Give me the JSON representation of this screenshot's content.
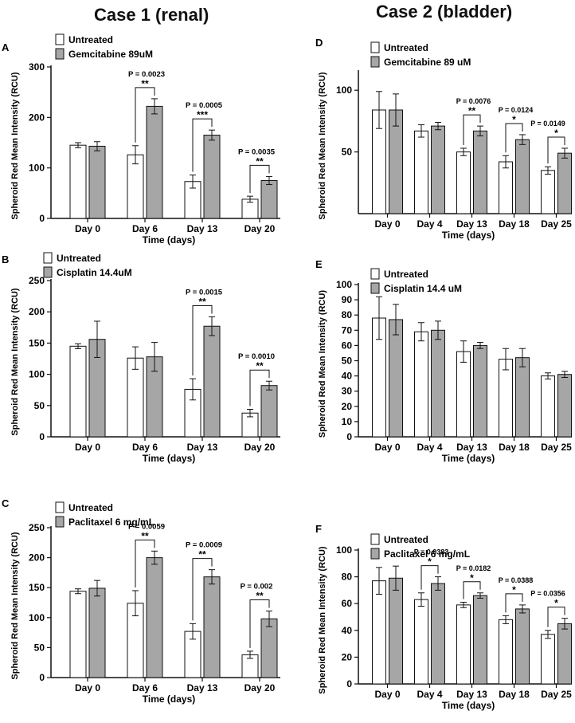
{
  "titles": {
    "case1": "Case 1 (renal)",
    "case2": "Case 2 (bladder)"
  },
  "colors": {
    "untreated": "#ffffff",
    "treated": "#a6a6a6",
    "stroke": "#111111"
  },
  "chart_data": [
    {
      "panel": "A",
      "type": "bar",
      "ylabel": "Spheroid  Red Mean Intensity (RCU)",
      "xlabel": "Time (days)",
      "ylim": [
        0,
        300
      ],
      "yticks": [
        0,
        100,
        200,
        300
      ],
      "categories": [
        "Day 0",
        "Day 6",
        "Day 13",
        "Day 20"
      ],
      "series": [
        {
          "name": "Untreated",
          "values": [
            145,
            126,
            73,
            38
          ],
          "errors": [
            5,
            18,
            13,
            6
          ]
        },
        {
          "name": "Gemcitabine 89uM",
          "values": [
            143,
            222,
            165,
            75
          ],
          "errors": [
            9,
            15,
            10,
            8
          ]
        }
      ],
      "annotations": [
        {
          "category": 1,
          "p": "P = 0.0023",
          "stars": "**"
        },
        {
          "category": 2,
          "p": "P = 0.0005",
          "stars": "***"
        },
        {
          "category": 3,
          "p": "P = 0.0035",
          "stars": "**"
        }
      ]
    },
    {
      "panel": "B",
      "type": "bar",
      "ylabel": "Spheroid  Red Mean Intensity (RCU)",
      "xlabel": "Time (days)",
      "ylim": [
        0,
        250
      ],
      "yticks": [
        0,
        50,
        100,
        150,
        200,
        250
      ],
      "categories": [
        "Day 0",
        "Day 6",
        "Day 13",
        "Day 20"
      ],
      "series": [
        {
          "name": "Untreated",
          "values": [
            145,
            126,
            76,
            38
          ],
          "errors": [
            4,
            18,
            17,
            6
          ]
        },
        {
          "name": "Cisplatin 14.4uM",
          "values": [
            156,
            128,
            177,
            82
          ],
          "errors": [
            29,
            23,
            15,
            7
          ]
        }
      ],
      "annotations": [
        {
          "category": 2,
          "p": "P = 0.0015",
          "stars": "**"
        },
        {
          "category": 3,
          "p": "P = 0.0010",
          "stars": "**"
        }
      ]
    },
    {
      "panel": "C",
      "type": "bar",
      "ylabel": "Spheroid  Red Mean Intensity (RCU)",
      "xlabel": "Time (days)",
      "ylim": [
        0,
        250
      ],
      "yticks": [
        0,
        50,
        100,
        150,
        200,
        250
      ],
      "categories": [
        "Day 0",
        "Day 6",
        "Day 13",
        "Day 20"
      ],
      "series": [
        {
          "name": "Untreated",
          "values": [
            144,
            124,
            77,
            38
          ],
          "errors": [
            4,
            21,
            13,
            6
          ]
        },
        {
          "name": "Paclitaxel 6 mg/mL",
          "values": [
            149,
            200,
            168,
            98
          ],
          "errors": [
            13,
            11,
            12,
            13
          ]
        }
      ],
      "annotations": [
        {
          "category": 1,
          "p": "P = 0.0059",
          "stars": "**"
        },
        {
          "category": 2,
          "p": "P = 0.0009",
          "stars": "**"
        },
        {
          "category": 3,
          "p": "P = 0.002",
          "stars": "**"
        }
      ]
    },
    {
      "panel": "D",
      "type": "bar",
      "ylabel": "Spheroid  Red Mean Intensity (RCU)",
      "xlabel": "Time (days)",
      "ylim": [
        0,
        115
      ],
      "yticks": [
        50,
        100
      ],
      "categories": [
        "Day 0",
        "Day 4",
        "Day 13",
        "Day 18",
        "Day 25"
      ],
      "series": [
        {
          "name": "Untreated",
          "values": [
            84,
            67,
            50,
            42,
            35
          ],
          "errors": [
            15,
            5,
            3,
            5,
            3
          ]
        },
        {
          "name": "Gemcitabine 89 uM",
          "values": [
            84,
            71,
            67,
            60,
            49
          ],
          "errors": [
            13,
            3,
            4,
            4,
            4
          ]
        }
      ],
      "annotations": [
        {
          "category": 2,
          "p": "P = 0.0076",
          "stars": "**"
        },
        {
          "category": 3,
          "p": "P = 0.0124",
          "stars": "*"
        },
        {
          "category": 4,
          "p": "P = 0.0149",
          "stars": "*"
        }
      ]
    },
    {
      "panel": "E",
      "type": "bar",
      "ylabel": "Spheroid  Red Mean Intensity (RCU)",
      "xlabel": "Time (days)",
      "ylim": [
        0,
        100
      ],
      "yticks": [
        0,
        10,
        20,
        30,
        40,
        50,
        60,
        70,
        80,
        90,
        100
      ],
      "categories": [
        "Day 0",
        "Day 4",
        "Day 13",
        "Day 18",
        "Day 25"
      ],
      "series": [
        {
          "name": "Untreated",
          "values": [
            78,
            69,
            56,
            51,
            40
          ],
          "errors": [
            14,
            6,
            7,
            7,
            2
          ]
        },
        {
          "name": "Cisplatin 14.4 uM",
          "values": [
            77,
            70,
            60,
            52,
            41
          ],
          "errors": [
            10,
            6,
            2,
            6,
            2
          ]
        }
      ],
      "annotations": []
    },
    {
      "panel": "F",
      "type": "bar",
      "ylabel": "Spheroid  Red Mean Intensity (RCU)",
      "xlabel": "Time (days)",
      "ylim": [
        0,
        100
      ],
      "yticks": [
        0,
        20,
        40,
        60,
        80,
        100
      ],
      "categories": [
        "Day 0",
        "Day 4",
        "Day 13",
        "Day 18",
        "Day 25"
      ],
      "series": [
        {
          "name": "Untreated",
          "values": [
            77,
            63,
            59,
            48,
            37
          ],
          "errors": [
            10,
            5,
            2,
            3,
            3
          ]
        },
        {
          "name": "Paclitaxel  6 mg/mL",
          "values": [
            79,
            75,
            66,
            56,
            45
          ],
          "errors": [
            9,
            5,
            2,
            3,
            4
          ]
        }
      ],
      "annotations": [
        {
          "category": 1,
          "p": "P = 0.0383",
          "stars": "*"
        },
        {
          "category": 2,
          "p": "P = 0.0182",
          "stars": "*"
        },
        {
          "category": 3,
          "p": "P = 0.0388",
          "stars": "*"
        },
        {
          "category": 4,
          "p": "P = 0.0356",
          "stars": "*"
        }
      ]
    }
  ]
}
